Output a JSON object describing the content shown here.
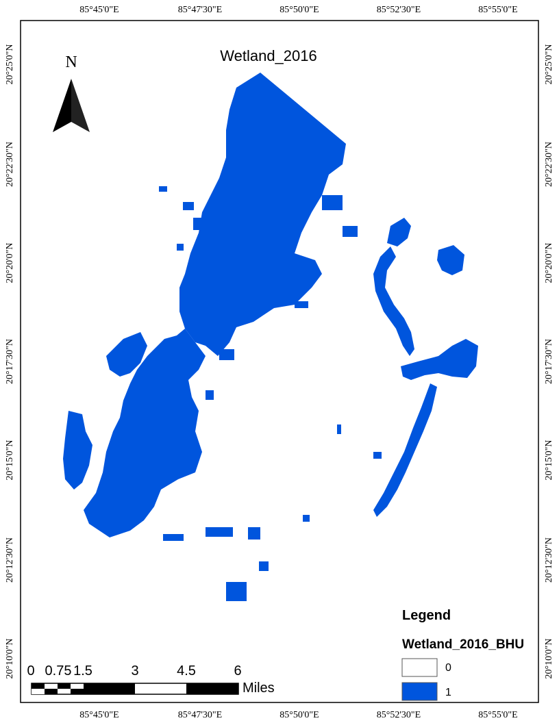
{
  "map": {
    "title": "Wetland_2016",
    "colors": {
      "wetland": "#0055dd",
      "background": "#ffffff",
      "frame": "#000000"
    }
  },
  "graticule": {
    "top": [
      "85°45'0\"E",
      "85°47'30\"E",
      "85°50'0\"E",
      "85°52'30\"E",
      "85°55'0\"E"
    ],
    "bottom": [
      "85°45'0\"E",
      "85°47'30\"E",
      "85°50'0\"E",
      "85°52'30\"E",
      "85°55'0\"E"
    ],
    "left": [
      "20°25'0\"N",
      "20°22'30\"N",
      "20°20'0\"N",
      "20°17'30\"N",
      "20°15'0\"N",
      "20°12'30\"N",
      "20°10'0\"N"
    ],
    "right": [
      "20°25'0\"N",
      "20°22'30\"N",
      "20°20'0\"N",
      "20°17'30\"N",
      "20°15'0\"N",
      "20°12'30\"N",
      "20°10'0\"N"
    ]
  },
  "north_arrow": {
    "label": "N",
    "icon": "north-arrow-icon"
  },
  "legend": {
    "title": "Legend",
    "layer": "Wetland_2016_BHU",
    "items": [
      {
        "label": "0",
        "color": "#ffffff"
      },
      {
        "label": "1",
        "color": "#0055dd"
      }
    ]
  },
  "scale_bar": {
    "labels": [
      "0",
      "0.75",
      "1.5",
      "3",
      "4.5",
      "6"
    ],
    "unit": "Miles"
  }
}
